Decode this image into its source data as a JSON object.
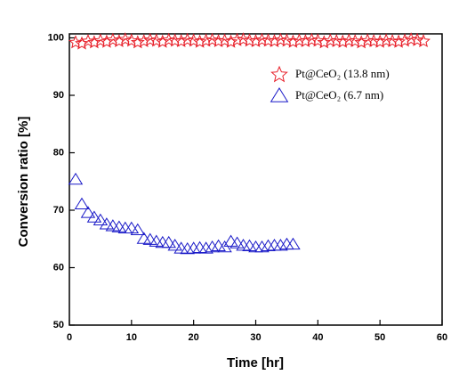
{
  "chart_data": {
    "type": "scatter",
    "xlabel": "Time [hr]",
    "ylabel": "Conversion ratio [%]",
    "xlim": [
      0,
      60
    ],
    "ylim": [
      50,
      100.7
    ],
    "xticks": [
      0,
      10,
      20,
      30,
      40,
      50,
      60
    ],
    "yticks": [
      50,
      60,
      70,
      80,
      90,
      100
    ],
    "series": [
      {
        "name": "Pt@CeO₂ (13.8 nm)",
        "color": "#e8202a",
        "marker": "star",
        "x": [
          1,
          2,
          3,
          4,
          5,
          6,
          7,
          8,
          9,
          10,
          11,
          12,
          13,
          14,
          15,
          16,
          17,
          18,
          19,
          20,
          21,
          22,
          23,
          24,
          25,
          26,
          27,
          28,
          29,
          30,
          31,
          32,
          33,
          34,
          35,
          36,
          37,
          38,
          39,
          40,
          41,
          42,
          43,
          44,
          45,
          46,
          47,
          48,
          49,
          50,
          51,
          52,
          53,
          54,
          55,
          56,
          57
        ],
        "values": [
          99.2,
          99.0,
          99.4,
          99.2,
          99.5,
          99.3,
          99.6,
          99.4,
          99.7,
          99.5,
          99.2,
          99.4,
          99.6,
          99.5,
          99.3,
          99.6,
          99.5,
          99.4,
          99.6,
          99.5,
          99.3,
          99.5,
          99.6,
          99.4,
          99.5,
          99.3,
          99.6,
          99.7,
          99.5,
          99.4,
          99.6,
          99.5,
          99.4,
          99.6,
          99.5,
          99.3,
          99.5,
          99.4,
          99.6,
          99.5,
          99.2,
          99.5,
          99.4,
          99.3,
          99.5,
          99.4,
          99.2,
          99.5,
          99.4,
          99.3,
          99.5,
          99.4,
          99.3,
          99.5,
          99.7,
          99.6,
          99.4
        ]
      },
      {
        "name": "Pt@CeO₂ (6.7 nm)",
        "color": "#1a1ac8",
        "marker": "triangle",
        "x": [
          1,
          2,
          3,
          4,
          5,
          6,
          7,
          8,
          9,
          10,
          11,
          12,
          13,
          14,
          15,
          16,
          17,
          18,
          19,
          20,
          21,
          22,
          23,
          24,
          25,
          26,
          27,
          28,
          29,
          30,
          31,
          32,
          33,
          34,
          35,
          36
        ],
        "values": [
          75.3,
          71.0,
          69.5,
          68.7,
          68.2,
          67.5,
          67.2,
          67.0,
          66.8,
          66.8,
          66.5,
          65.0,
          64.8,
          64.5,
          64.3,
          64.3,
          63.8,
          63.3,
          63.2,
          63.3,
          63.4,
          63.3,
          63.5,
          63.7,
          63.5,
          64.5,
          64.2,
          63.8,
          63.7,
          63.5,
          63.5,
          63.7,
          63.8,
          63.8,
          64.0,
          64.0
        ]
      }
    ]
  }
}
